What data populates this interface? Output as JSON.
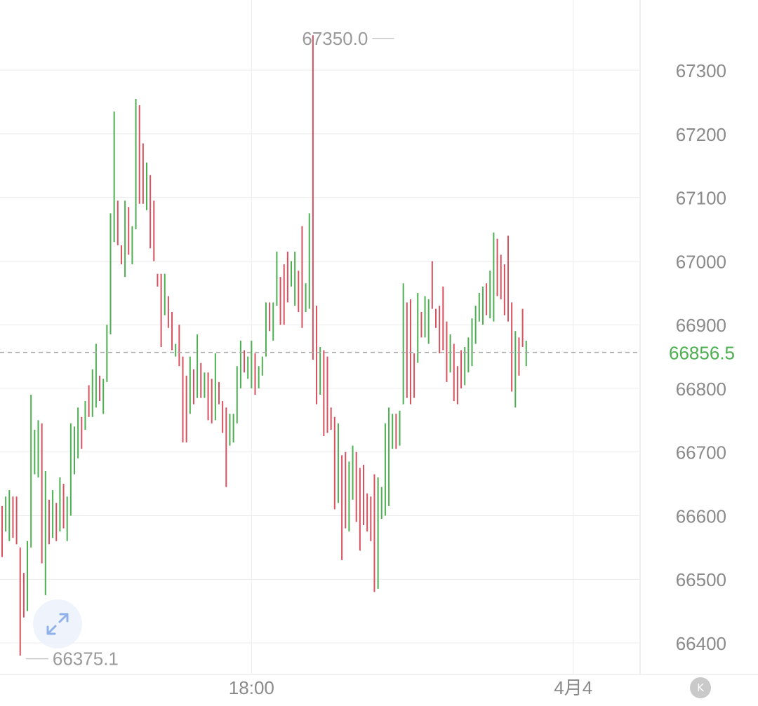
{
  "chart_data": {
    "type": "ohlc",
    "y_axis": {
      "ticks": [
        "67300",
        "67200",
        "67100",
        "67000",
        "66900",
        "66800",
        "66700",
        "66600",
        "66500",
        "66400"
      ],
      "position": "right"
    },
    "x_axis": {
      "ticks": [
        {
          "label": "18:00",
          "bar_index": 69
        },
        {
          "label": "4月4",
          "bar_index": 158
        }
      ]
    },
    "annotations": {
      "high_label": "67350.0",
      "high_bar_index": 109,
      "low_label": "66375.1",
      "low_bar_index": 6,
      "last_price_label": "66856.5",
      "last_price": 66856.5
    },
    "colors": {
      "up": "#4caf50",
      "down": "#d9505e",
      "last_price": "#4caf50",
      "grid": "#ececec",
      "dashed_line": "#a9a9a9"
    },
    "bars": [
      [
        66615,
        66535,
        "d"
      ],
      [
        66630,
        66575,
        "u"
      ],
      [
        66640,
        66560,
        "u"
      ],
      [
        66630,
        66565,
        "d"
      ],
      [
        66630,
        66555,
        "d"
      ],
      [
        66550,
        66380,
        "d"
      ],
      [
        66510,
        66440,
        "d"
      ],
      [
        66560,
        66450,
        "u"
      ],
      [
        66790,
        66550,
        "u"
      ],
      [
        66735,
        66665,
        "u"
      ],
      [
        66750,
        66660,
        "u"
      ],
      [
        66745,
        66525,
        "d"
      ],
      [
        66670,
        66475,
        "u"
      ],
      [
        66625,
        66555,
        "d"
      ],
      [
        66640,
        66565,
        "u"
      ],
      [
        66620,
        66560,
        "d"
      ],
      [
        66660,
        66575,
        "u"
      ],
      [
        66650,
        66580,
        "d"
      ],
      [
        66630,
        66560,
        "u"
      ],
      [
        66745,
        66600,
        "u"
      ],
      [
        66740,
        66665,
        "u"
      ],
      [
        66770,
        66690,
        "u"
      ],
      [
        66755,
        66705,
        "d"
      ],
      [
        66780,
        66735,
        "u"
      ],
      [
        66805,
        66755,
        "d"
      ],
      [
        66830,
        66755,
        "u"
      ],
      [
        66870,
        66770,
        "u"
      ],
      [
        66820,
        66780,
        "d"
      ],
      [
        66815,
        66760,
        "u"
      ],
      [
        66900,
        66810,
        "u"
      ],
      [
        67075,
        66885,
        "u"
      ],
      [
        67235,
        67030,
        "u"
      ],
      [
        67095,
        67025,
        "d"
      ],
      [
        67025,
        66995,
        "d"
      ],
      [
        67095,
        66975,
        "u"
      ],
      [
        67085,
        67010,
        "d"
      ],
      [
        67055,
        66995,
        "u"
      ],
      [
        67255,
        67050,
        "u"
      ],
      [
        67245,
        67090,
        "d"
      ],
      [
        67185,
        67090,
        "d"
      ],
      [
        67155,
        67080,
        "u"
      ],
      [
        67135,
        67020,
        "d"
      ],
      [
        67095,
        67000,
        "d"
      ],
      [
        66980,
        66960,
        "d"
      ],
      [
        66980,
        66865,
        "d"
      ],
      [
        66980,
        66915,
        "u"
      ],
      [
        66945,
        66895,
        "d"
      ],
      [
        66920,
        66860,
        "d"
      ],
      [
        66870,
        66850,
        "u"
      ],
      [
        66900,
        66835,
        "d"
      ],
      [
        66850,
        66715,
        "d"
      ],
      [
        66820,
        66715,
        "d"
      ],
      [
        66850,
        66760,
        "u"
      ],
      [
        66830,
        66775,
        "d"
      ],
      [
        66885,
        66785,
        "u"
      ],
      [
        66840,
        66785,
        "d"
      ],
      [
        66825,
        66785,
        "u"
      ],
      [
        66825,
        66750,
        "d"
      ],
      [
        66815,
        66745,
        "d"
      ],
      [
        66855,
        66750,
        "u"
      ],
      [
        66810,
        66775,
        "d"
      ],
      [
        66780,
        66730,
        "d"
      ],
      [
        66770,
        66645,
        "d"
      ],
      [
        66760,
        66710,
        "u"
      ],
      [
        66760,
        66715,
        "u"
      ],
      [
        66835,
        66745,
        "u"
      ],
      [
        66875,
        66800,
        "u"
      ],
      [
        66860,
        66825,
        "d"
      ],
      [
        66850,
        66815,
        "u"
      ],
      [
        66875,
        66800,
        "u"
      ],
      [
        66855,
        66790,
        "d"
      ],
      [
        66835,
        66800,
        "u"
      ],
      [
        66850,
        66820,
        "u"
      ],
      [
        66935,
        66850,
        "u"
      ],
      [
        66935,
        66890,
        "d"
      ],
      [
        66935,
        66875,
        "u"
      ],
      [
        67015,
        66930,
        "u"
      ],
      [
        66975,
        66900,
        "d"
      ],
      [
        66995,
        66900,
        "d"
      ],
      [
        67015,
        66935,
        "d"
      ],
      [
        67000,
        66960,
        "u"
      ],
      [
        67015,
        66930,
        "u"
      ],
      [
        66985,
        66920,
        "d"
      ],
      [
        67055,
        66895,
        "d"
      ],
      [
        66965,
        66920,
        "u"
      ],
      [
        67075,
        66925,
        "u"
      ],
      [
        67355,
        66845,
        "d"
      ],
      [
        66930,
        66775,
        "d"
      ],
      [
        66865,
        66790,
        "u"
      ],
      [
        66860,
        66725,
        "d"
      ],
      [
        66850,
        66730,
        "d"
      ],
      [
        66770,
        66735,
        "d"
      ],
      [
        66755,
        66610,
        "d"
      ],
      [
        66745,
        66620,
        "u"
      ],
      [
        66695,
        66530,
        "d"
      ],
      [
        66700,
        66580,
        "d"
      ],
      [
        66685,
        66575,
        "u"
      ],
      [
        66710,
        66625,
        "u"
      ],
      [
        66700,
        66590,
        "d"
      ],
      [
        66675,
        66545,
        "d"
      ],
      [
        66680,
        66585,
        "d"
      ],
      [
        66635,
        66575,
        "d"
      ],
      [
        66630,
        66560,
        "d"
      ],
      [
        66665,
        66480,
        "d"
      ],
      [
        66660,
        66485,
        "u"
      ],
      [
        66645,
        66595,
        "u"
      ],
      [
        66745,
        66600,
        "u"
      ],
      [
        66770,
        66615,
        "u"
      ],
      [
        66760,
        66705,
        "u"
      ],
      [
        66760,
        66705,
        "d"
      ],
      [
        66765,
        66710,
        "u"
      ],
      [
        66965,
        66775,
        "u"
      ],
      [
        66935,
        66785,
        "d"
      ],
      [
        66940,
        66775,
        "d"
      ],
      [
        66855,
        66785,
        "d"
      ],
      [
        66950,
        66840,
        "u"
      ],
      [
        66920,
        66880,
        "d"
      ],
      [
        66945,
        66880,
        "u"
      ],
      [
        66940,
        66870,
        "u"
      ],
      [
        67000,
        66925,
        "d"
      ],
      [
        66925,
        66895,
        "d"
      ],
      [
        66930,
        66855,
        "d"
      ],
      [
        66960,
        66860,
        "d"
      ],
      [
        66905,
        66810,
        "d"
      ],
      [
        66885,
        66825,
        "u"
      ],
      [
        66870,
        66780,
        "d"
      ],
      [
        66835,
        66775,
        "d"
      ],
      [
        66860,
        66800,
        "d"
      ],
      [
        66865,
        66805,
        "u"
      ],
      [
        66880,
        66825,
        "u"
      ],
      [
        66910,
        66835,
        "u"
      ],
      [
        66930,
        66870,
        "u"
      ],
      [
        66950,
        66905,
        "u"
      ],
      [
        66960,
        66900,
        "u"
      ],
      [
        66965,
        66915,
        "d"
      ],
      [
        66985,
        66910,
        "u"
      ],
      [
        67045,
        66905,
        "u"
      ],
      [
        67035,
        66945,
        "d"
      ],
      [
        67010,
        66940,
        "d"
      ],
      [
        66995,
        66915,
        "d"
      ],
      [
        67040,
        66905,
        "d"
      ],
      [
        66935,
        66795,
        "d"
      ],
      [
        66890,
        66770,
        "u"
      ],
      [
        66880,
        66820,
        "d"
      ],
      [
        66925,
        66865,
        "d"
      ],
      [
        66875,
        66835,
        "u"
      ]
    ]
  },
  "controls": {
    "expand_icon": "expand-arrows-icon",
    "k_button_label": "K"
  }
}
